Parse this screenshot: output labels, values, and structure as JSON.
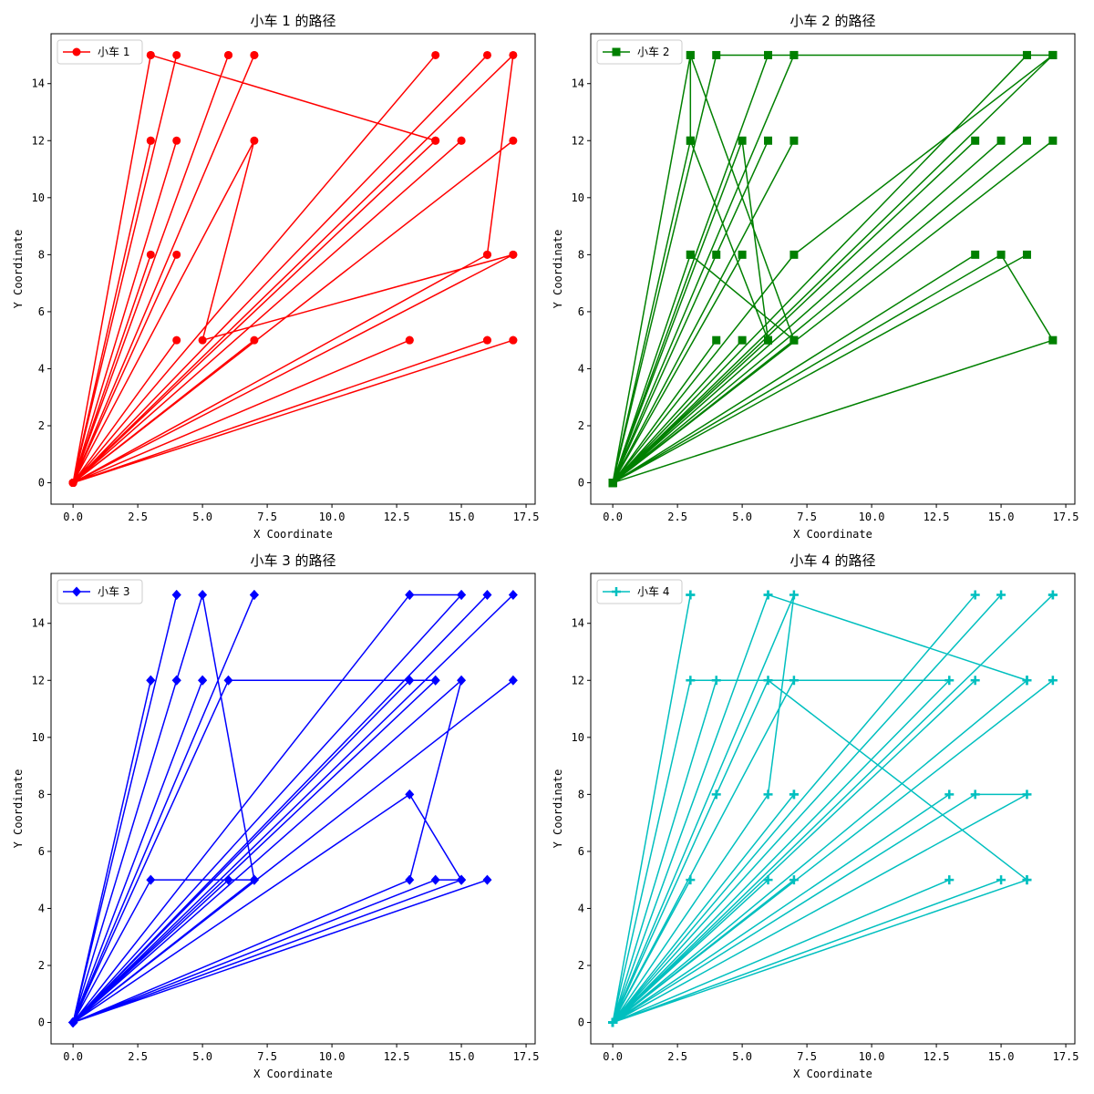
{
  "chart_data": [
    {
      "type": "line",
      "title": "小车 1 的路径",
      "xlabel": "X Coordinate",
      "ylabel": "Y Coordinate",
      "xlim": [
        -0.85,
        17.85
      ],
      "ylim": [
        -0.75,
        15.75
      ],
      "xticks": [
        0,
        2.5,
        5,
        7.5,
        10,
        12.5,
        15,
        17.5
      ],
      "xtick_labels": [
        "0.0",
        "2.5",
        "5.0",
        "7.5",
        "10.0",
        "12.5",
        "15.0",
        "17.5"
      ],
      "yticks": [
        0,
        2,
        4,
        6,
        8,
        10,
        12,
        14
      ],
      "ytick_labels": [
        "0",
        "2",
        "4",
        "6",
        "8",
        "10",
        "12",
        "14"
      ],
      "legend_loc": "upper-left",
      "series": [
        {
          "name": "小车 1",
          "color": "#ff0000",
          "marker": "circle",
          "points": [
            [
              0,
              0
            ],
            [
              3,
              15
            ],
            [
              14,
              12
            ],
            [
              0,
              0
            ],
            [
              17,
              15
            ],
            [
              16,
              8
            ],
            [
              0,
              0
            ],
            [
              4,
              15
            ],
            [
              0,
              0
            ],
            [
              6,
              15
            ],
            [
              0,
              0
            ],
            [
              7,
              15
            ],
            [
              0,
              0
            ],
            [
              3,
              12
            ],
            [
              0,
              0
            ],
            [
              4,
              12
            ],
            [
              0,
              0
            ],
            [
              7,
              12
            ],
            [
              5,
              5
            ],
            [
              17,
              8
            ],
            [
              0,
              0
            ],
            [
              3,
              8
            ],
            [
              0,
              0
            ],
            [
              4,
              8
            ],
            [
              0,
              0
            ],
            [
              4,
              5
            ],
            [
              0,
              0
            ],
            [
              7,
              5
            ],
            [
              0,
              0
            ],
            [
              13,
              5
            ],
            [
              0,
              0
            ],
            [
              16,
              5
            ],
            [
              0,
              0
            ],
            [
              17,
              5
            ],
            [
              0,
              0
            ],
            [
              14,
              15
            ],
            [
              0,
              0
            ],
            [
              16,
              15
            ],
            [
              0,
              0
            ],
            [
              15,
              12
            ],
            [
              0,
              0
            ],
            [
              17,
              12
            ],
            [
              0,
              0
            ],
            [
              16,
              8
            ],
            [
              0,
              0
            ],
            [
              17,
              8
            ],
            [
              0,
              0
            ],
            [
              3,
              12
            ],
            [
              0,
              0
            ],
            [
              3,
              15
            ],
            [
              0,
              0
            ],
            [
              7,
              15
            ],
            [
              0,
              0
            ],
            [
              6,
              15
            ],
            [
              0,
              0
            ],
            [
              14,
              12
            ],
            [
              0,
              0
            ],
            [
              15,
              12
            ],
            [
              0,
              0
            ],
            [
              16,
              5
            ],
            [
              0,
              0
            ],
            [
              17,
              5
            ],
            [
              0,
              0
            ],
            [
              13,
              5
            ],
            [
              0,
              0
            ]
          ]
        }
      ]
    },
    {
      "type": "line",
      "title": "小车 2 的路径",
      "xlabel": "X Coordinate",
      "ylabel": "Y Coordinate",
      "xlim": [
        -0.85,
        17.85
      ],
      "ylim": [
        -0.75,
        15.75
      ],
      "xticks": [
        0,
        2.5,
        5,
        7.5,
        10,
        12.5,
        15,
        17.5
      ],
      "xtick_labels": [
        "0.0",
        "2.5",
        "5.0",
        "7.5",
        "10.0",
        "12.5",
        "15.0",
        "17.5"
      ],
      "yticks": [
        0,
        2,
        4,
        6,
        8,
        10,
        12,
        14
      ],
      "ytick_labels": [
        "0",
        "2",
        "4",
        "6",
        "8",
        "10",
        "12",
        "14"
      ],
      "legend_loc": "upper-left",
      "series": [
        {
          "name": "小车 2",
          "color": "#008000",
          "marker": "square",
          "points": [
            [
              0,
              0
            ],
            [
              3,
              15
            ],
            [
              7,
              5
            ],
            [
              0,
              0
            ],
            [
              3,
              12
            ],
            [
              6,
              5
            ],
            [
              0,
              0
            ],
            [
              3,
              8
            ],
            [
              7,
              5
            ],
            [
              0,
              0
            ],
            [
              4,
              15
            ],
            [
              16,
              15
            ],
            [
              0,
              0
            ],
            [
              7,
              15
            ],
            [
              17,
              15
            ],
            [
              0,
              0
            ],
            [
              7,
              8
            ],
            [
              17,
              15
            ],
            [
              0,
              0
            ],
            [
              15,
              8
            ],
            [
              17,
              5
            ],
            [
              0,
              0
            ],
            [
              5,
              12
            ],
            [
              6,
              5
            ],
            [
              0,
              0
            ],
            [
              3,
              12
            ],
            [
              3,
              15
            ],
            [
              0,
              0
            ],
            [
              6,
              15
            ],
            [
              0,
              0
            ],
            [
              7,
              15
            ],
            [
              0,
              0
            ],
            [
              5,
              8
            ],
            [
              0,
              0
            ],
            [
              4,
              8
            ],
            [
              0,
              0
            ],
            [
              4,
              5
            ],
            [
              0,
              0
            ],
            [
              5,
              5
            ],
            [
              0,
              0
            ],
            [
              6,
              12
            ],
            [
              0,
              0
            ],
            [
              7,
              12
            ],
            [
              0,
              0
            ],
            [
              14,
              12
            ],
            [
              0,
              0
            ],
            [
              15,
              12
            ],
            [
              0,
              0
            ],
            [
              16,
              12
            ],
            [
              0,
              0
            ],
            [
              17,
              12
            ],
            [
              0,
              0
            ],
            [
              14,
              8
            ],
            [
              0,
              0
            ],
            [
              16,
              8
            ],
            [
              0,
              0
            ],
            [
              16,
              15
            ],
            [
              0,
              0
            ],
            [
              6,
              15
            ],
            [
              0,
              0
            ],
            [
              3,
              8
            ],
            [
              0,
              0
            ],
            [
              17,
              15
            ],
            [
              0,
              0
            ]
          ]
        }
      ]
    },
    {
      "type": "line",
      "title": "小车 3 的路径",
      "xlabel": "X Coordinate",
      "ylabel": "Y Coordinate",
      "xlim": [
        -0.85,
        17.85
      ],
      "ylim": [
        -0.75,
        15.75
      ],
      "xticks": [
        0,
        2.5,
        5,
        7.5,
        10,
        12.5,
        15,
        17.5
      ],
      "xtick_labels": [
        "0.0",
        "2.5",
        "5.0",
        "7.5",
        "10.0",
        "12.5",
        "15.0",
        "17.5"
      ],
      "yticks": [
        0,
        2,
        4,
        6,
        8,
        10,
        12,
        14
      ],
      "ytick_labels": [
        "0",
        "2",
        "4",
        "6",
        "8",
        "10",
        "12",
        "14"
      ],
      "legend_loc": "upper-left",
      "series": [
        {
          "name": "小车 3",
          "color": "#0000ff",
          "marker": "diamond",
          "points": [
            [
              0,
              0
            ],
            [
              4,
              15
            ],
            [
              0,
              0
            ],
            [
              5,
              15
            ],
            [
              7,
              5
            ],
            [
              0,
              0
            ],
            [
              7,
              15
            ],
            [
              0,
              0
            ],
            [
              13,
              15
            ],
            [
              15,
              15
            ],
            [
              0,
              0
            ],
            [
              16,
              15
            ],
            [
              0,
              0
            ],
            [
              17,
              15
            ],
            [
              0,
              0
            ],
            [
              3,
              12
            ],
            [
              0,
              0
            ],
            [
              4,
              12
            ],
            [
              0,
              0
            ],
            [
              5,
              12
            ],
            [
              0,
              0
            ],
            [
              6,
              12
            ],
            [
              14,
              12
            ],
            [
              0,
              0
            ],
            [
              13,
              12
            ],
            [
              0,
              0
            ],
            [
              15,
              12
            ],
            [
              13,
              5
            ],
            [
              0,
              0
            ],
            [
              17,
              12
            ],
            [
              0,
              0
            ],
            [
              3,
              5
            ],
            [
              7,
              5
            ],
            [
              0,
              0
            ],
            [
              6,
              5
            ],
            [
              0,
              0
            ],
            [
              13,
              8
            ],
            [
              15,
              5
            ],
            [
              0,
              0
            ],
            [
              14,
              5
            ],
            [
              15,
              5
            ],
            [
              0,
              0
            ],
            [
              16,
              5
            ],
            [
              0,
              0
            ],
            [
              4,
              15
            ],
            [
              0,
              0
            ],
            [
              5,
              12
            ],
            [
              0,
              0
            ],
            [
              13,
              15
            ],
            [
              0,
              0
            ],
            [
              15,
              15
            ],
            [
              0,
              0
            ],
            [
              7,
              15
            ],
            [
              0,
              0
            ],
            [
              14,
              12
            ],
            [
              0,
              0
            ],
            [
              15,
              5
            ],
            [
              0,
              0
            ],
            [
              3,
              12
            ],
            [
              0,
              0
            ],
            [
              4,
              12
            ],
            [
              0,
              0
            ],
            [
              7,
              5
            ],
            [
              0,
              0
            ]
          ]
        }
      ]
    },
    {
      "type": "line",
      "title": "小车 4 的路径",
      "xlabel": "X Coordinate",
      "ylabel": "Y Coordinate",
      "xlim": [
        -0.85,
        17.85
      ],
      "ylim": [
        -0.75,
        15.75
      ],
      "xticks": [
        0,
        2.5,
        5,
        7.5,
        10,
        12.5,
        15,
        17.5
      ],
      "xtick_labels": [
        "0.0",
        "2.5",
        "5.0",
        "7.5",
        "10.0",
        "12.5",
        "15.0",
        "17.5"
      ],
      "yticks": [
        0,
        2,
        4,
        6,
        8,
        10,
        12,
        14
      ],
      "ytick_labels": [
        "0",
        "2",
        "4",
        "6",
        "8",
        "10",
        "12",
        "14"
      ],
      "legend_loc": "upper-left",
      "series": [
        {
          "name": "小车 4",
          "color": "#00bfbf",
          "marker": "plus",
          "points": [
            [
              0,
              0
            ],
            [
              3,
              15
            ],
            [
              0,
              0
            ],
            [
              6,
              15
            ],
            [
              16,
              12
            ],
            [
              0,
              0
            ],
            [
              7,
              15
            ],
            [
              6,
              8
            ],
            [
              0,
              0
            ],
            [
              14,
              15
            ],
            [
              0,
              0
            ],
            [
              15,
              15
            ],
            [
              0,
              0
            ],
            [
              17,
              15
            ],
            [
              0,
              0
            ],
            [
              3,
              12
            ],
            [
              13,
              12
            ],
            [
              0,
              0
            ],
            [
              4,
              12
            ],
            [
              0,
              0
            ],
            [
              6,
              12
            ],
            [
              16,
              5
            ],
            [
              0,
              0
            ],
            [
              7,
              12
            ],
            [
              0,
              0
            ],
            [
              14,
              12
            ],
            [
              0,
              0
            ],
            [
              16,
              12
            ],
            [
              0,
              0
            ],
            [
              17,
              12
            ],
            [
              0,
              0
            ],
            [
              4,
              8
            ],
            [
              0,
              0
            ],
            [
              7,
              8
            ],
            [
              0,
              0
            ],
            [
              13,
              8
            ],
            [
              0,
              0
            ],
            [
              14,
              8
            ],
            [
              16,
              8
            ],
            [
              0,
              0
            ],
            [
              3,
              5
            ],
            [
              0,
              0
            ],
            [
              6,
              5
            ],
            [
              0,
              0
            ],
            [
              7,
              5
            ],
            [
              0,
              0
            ],
            [
              13,
              5
            ],
            [
              0,
              0
            ],
            [
              15,
              5
            ],
            [
              0,
              0
            ],
            [
              16,
              5
            ],
            [
              0,
              0
            ],
            [
              3,
              15
            ],
            [
              0,
              0
            ],
            [
              6,
              15
            ],
            [
              0,
              0
            ],
            [
              17,
              15
            ],
            [
              0,
              0
            ],
            [
              16,
              12
            ],
            [
              0,
              0
            ],
            [
              7,
              8
            ],
            [
              0,
              0
            ]
          ]
        }
      ]
    }
  ]
}
